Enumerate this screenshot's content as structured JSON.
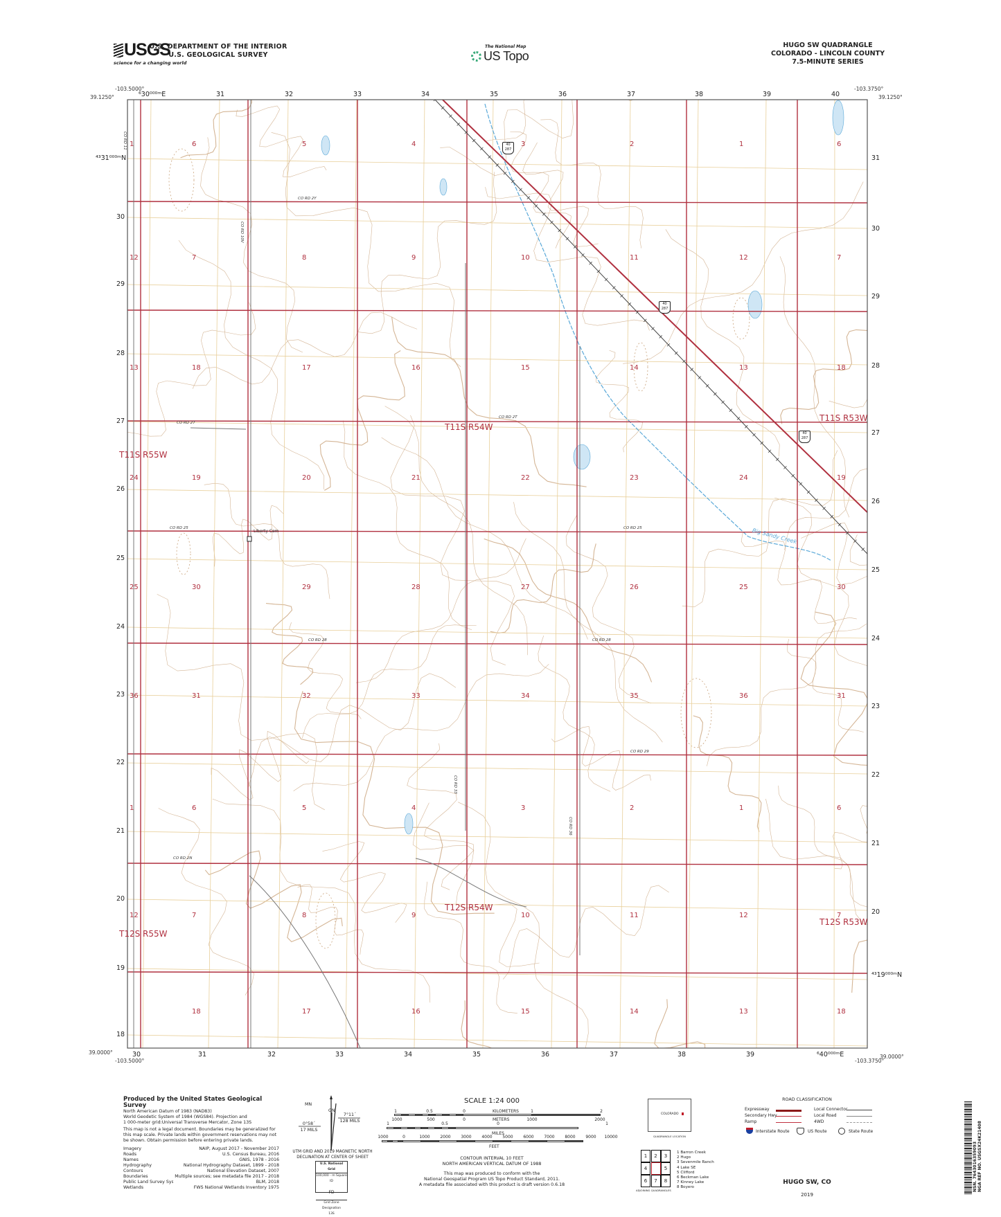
{
  "header": {
    "usgs_logo": "USGS",
    "usgs_tagline": "science for a changing world",
    "dept_line1": "U.S. DEPARTMENT OF THE INTERIOR",
    "dept_line2": "U.S. GEOLOGICAL SURVEY",
    "national_map": "The National Map",
    "us_topo": "US Topo",
    "title": "HUGO SW QUADRANGLE",
    "state_county": "COLORADO - LINCOLN COUNTY",
    "series": "7.5-MINUTE SERIES"
  },
  "corners": {
    "nw_lon": "-103.5000°",
    "nw_lat": "39.1250°",
    "ne_lon": "-103.3750°",
    "ne_lat": "39.1250°",
    "sw_lon": "-103.5000°",
    "sw_lat": "39.0000°",
    "se_lon": "-103.3750°",
    "se_lat": "39.0000°"
  },
  "utm": {
    "top": [
      "⁶30⁰⁰⁰ᵐE",
      "31",
      "32",
      "33",
      "34",
      "35",
      "36",
      "37",
      "38",
      "39",
      "40"
    ],
    "bottom": [
      "30",
      "31",
      "32",
      "33",
      "34",
      "35",
      "36",
      "37",
      "38",
      "39",
      "⁶40⁰⁰⁰ᵐE"
    ],
    "left": [
      "⁴³31⁰⁰⁰ᵐN",
      "30",
      "29",
      "28",
      "27",
      "26",
      "25",
      "24",
      "23",
      "22",
      "21",
      "20",
      "19",
      "18"
    ],
    "right": [
      "31",
      "30",
      "29",
      "28",
      "27",
      "26",
      "25",
      "24",
      "23",
      "22",
      "21",
      "20",
      "⁴³19⁰⁰⁰ᵐN"
    ]
  },
  "map": {
    "colors": {
      "section_line": "#b0303f",
      "section_text": "#b0303f",
      "grid": "#e8cf9a",
      "contour": "#c9a27a",
      "water": "#59a8d8",
      "road": "#777777",
      "frame": "#555555"
    },
    "sections": [
      [
        "1",
        "6",
        "5",
        "4",
        "3",
        "2",
        "1",
        "6"
      ],
      [
        "12",
        "7",
        "8",
        "9",
        "10",
        "11",
        "12",
        "7"
      ],
      [
        "13",
        "18",
        "17",
        "16",
        "15",
        "14",
        "13",
        "18"
      ],
      [
        "24",
        "19",
        "20",
        "21",
        "22",
        "23",
        "24",
        "19"
      ],
      [
        "25",
        "30",
        "29",
        "28",
        "27",
        "26",
        "25",
        "30"
      ],
      [
        "36",
        "31",
        "32",
        "33",
        "34",
        "35",
        "36",
        "31"
      ],
      [
        "1",
        "6",
        "5",
        "4",
        "3",
        "2",
        "1",
        "6"
      ],
      [
        "12",
        "7",
        "8",
        "9",
        "10",
        "11",
        "12",
        "7"
      ],
      [
        "",
        "18",
        "17",
        "16",
        "15",
        "14",
        "13",
        "18"
      ]
    ],
    "townships": [
      "T11S R55W",
      "T11S R54W",
      "T11S R53W",
      "T12S R55W",
      "T12S R54W",
      "T12S R53W"
    ],
    "roads": [
      "CO RD 2Y",
      "CO RD 27",
      "CO RD 2T",
      "CO RD 25",
      "CO RD 25",
      "CO RD 28",
      "CO RD 28",
      "CO RD 29",
      "CO RD 2N",
      "CO RD 10V",
      "CO RD 33",
      "CO RD 36",
      "CO RD 11"
    ],
    "shield": {
      "top": "40",
      "bottom": "287"
    },
    "cemetery": "Liberty Cem",
    "creek": "Big Sandy Creek"
  },
  "footer": {
    "produced_by": "Produced by the United States Geological Survey",
    "datum_lines": [
      "North American Datum of 1983 (NAD83)",
      "World Geodetic System of 1984 (WGS84). Projection and",
      "1 000-meter grid:Universal Transverse Mercator, Zone 13S"
    ],
    "disclaimer": "This map is not a legal document. Boundaries may be generalized for this map scale. Private lands within government reservations may not be shown. Obtain permission before entering private lands.",
    "credits": [
      {
        "label": "Imagery",
        "value": "NAIP, August 2017 - November 2017"
      },
      {
        "label": "Roads",
        "value": "U.S. Census Bureau, 2016"
      },
      {
        "label": "Names",
        "value": "GNIS, 1978 - 2016"
      },
      {
        "label": "Hydrography",
        "value": "National Hydrography Dataset, 1899 - 2018"
      },
      {
        "label": "Contours",
        "value": "National Elevation Dataset, 2007"
      },
      {
        "label": "Boundaries",
        "value": "Multiple sources; see metadata file 2017 - 2018"
      },
      {
        "label": "Public Land Survey System",
        "value": "BLM, 2018"
      },
      {
        "label": "Wetlands",
        "value": "FWS National Wetlands Inventory 1975"
      }
    ],
    "declination": {
      "mn": "MN",
      "gn": "GN",
      "grid_angle": "0°58´",
      "grid_mils": "17 MILS",
      "mag_angle": "7°11´",
      "mag_mils": "128 MILS",
      "caption1": "UTM GRID AND 2019 MAGNETIC NORTH",
      "caption2": "DECLINATION AT CENTER OF SHEET"
    },
    "usng": {
      "title": "U.S. National Grid",
      "subtitle": "100,000 - m Square ID",
      "square": "FD",
      "zone_label": "Grid Zone Designation",
      "zone": "13S"
    },
    "scale": {
      "title": "SCALE 1:24 000",
      "km_labels": [
        "1",
        "0.5",
        "0",
        "KILOMETERS",
        "1",
        "2"
      ],
      "m_labels": [
        "1000",
        "500",
        "0",
        "METERS",
        "1000",
        "2000"
      ],
      "mi_labels": [
        "1",
        "0.5",
        "0",
        "MILES",
        "1"
      ],
      "ft_labels": [
        "1000",
        "0",
        "1000",
        "2000",
        "3000",
        "4000",
        "5000",
        "6000",
        "7000",
        "8000",
        "9000",
        "10000"
      ],
      "ft_unit": "FEET"
    },
    "contour_interval": "CONTOUR INTERVAL 10 FEET",
    "vertical_datum": "NORTH AMERICAN VERTICAL DATUM OF 1988",
    "conform_lines": [
      "This map was produced to conform with the",
      "National Geospatial Program US Topo Product Standard, 2011.",
      "A metadata file associated with this product is draft version 0.6.18"
    ],
    "location": {
      "state": "COLORADO",
      "caption": "QUADRANGLE LOCATION"
    },
    "adjoining": {
      "cells": [
        "1",
        "2",
        "3",
        "4",
        "",
        "5",
        "6",
        "7",
        "8"
      ],
      "names": [
        "1 Barron Creek",
        "2 Hugo",
        "3 Sevenmile Ranch",
        "4 Lake SE",
        "5 Clifford",
        "6 Beckman Lake",
        "7 Kinney Lake",
        "8 Boyero"
      ],
      "caption": "ADJOINING QUADRANGLES"
    },
    "road_class": {
      "title": "ROAD CLASSIFICATION",
      "left": [
        "Expressway",
        "Secondary Hwy",
        "Ramp"
      ],
      "right": [
        "Local Connector",
        "Local Road",
        "4WD"
      ],
      "routes": [
        "Interstate Route",
        "US Route",
        "State Route"
      ]
    },
    "sheet_name": "HUGO SW,  CO",
    "year": "2019",
    "barcode": {
      "nsn": "NSN. 7643016359093",
      "nga": "NGA REF NO. USGSX24K21408"
    }
  }
}
